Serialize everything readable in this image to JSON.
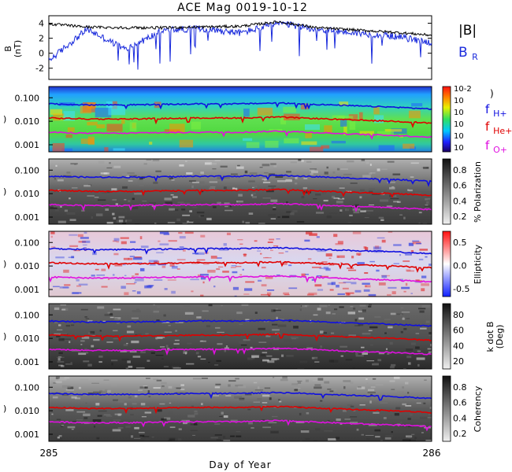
{
  "title": "ACE Mag 0019-10-12",
  "xlabel": "Day of Year",
  "x_ticks": [
    "285",
    "286"
  ],
  "colors": {
    "btot": "#000000",
    "br": "#1a2bdc",
    "fH": "#1010e0",
    "fHe": "#e00000",
    "fO": "#e010e0"
  },
  "mag_panel": {
    "ylabel": "B",
    "yunit": "(nT)",
    "yticks": [
      "4",
      "2",
      "0",
      "-2"
    ],
    "legend_btot": "|B|",
    "legend_br_main": "B",
    "legend_br_sub": "R"
  },
  "freq_ticks": [
    "0.100",
    "0.010",
    "0.001"
  ],
  "species_legend": {
    "h_main": "f",
    "h_sub": "H+",
    "he_main": "f",
    "he_sub": "He+",
    "o_main": "f",
    "o_sub": "O+"
  },
  "power_colorbar": {
    "ticks": [
      "10-2",
      "10",
      "10",
      "10",
      "10",
      "10"
    ],
    "paren": ")"
  },
  "pol_colorbar": {
    "label": "% Polarization",
    "ticks": [
      "0.8",
      "0.6",
      "0.4",
      "0.2"
    ]
  },
  "ell_colorbar": {
    "label": "Ellipticity",
    "ticks": [
      "0.5",
      "0.0",
      "-0.5"
    ]
  },
  "kdotb_colorbar": {
    "label1": "k dot B",
    "label2": "(Deg)",
    "ticks": [
      "80",
      "60",
      "40",
      "20"
    ]
  },
  "coh_colorbar": {
    "label": "Coherency",
    "ticks": [
      "0.8",
      "0.6",
      "0.4",
      "0.2"
    ]
  },
  "chart_data": {
    "type": "line",
    "x": [
      285.0,
      285.1,
      285.2,
      285.3,
      285.4,
      285.5,
      285.6,
      285.7,
      285.8,
      285.9,
      286.0
    ],
    "xlim": [
      285,
      286
    ],
    "magnetic_field": {
      "ylim": [
        -3.5,
        5
      ],
      "series": [
        {
          "name": "|B|",
          "values": [
            3.9,
            3.5,
            3.4,
            3.4,
            3.5,
            3.6,
            4.2,
            3.4,
            3.1,
            2.8,
            2.4
          ]
        },
        {
          "name": "B_R",
          "values": [
            -1.0,
            3.2,
            0.5,
            3.1,
            3.3,
            2.7,
            4.0,
            3.2,
            2.7,
            2.3,
            1.4
          ]
        }
      ]
    },
    "gyrofrequency_hz": {
      "yscale": "log",
      "ylim": [
        0.0005,
        0.3
      ],
      "series": [
        {
          "name": "f_H+",
          "values": [
            0.055,
            0.05,
            0.05,
            0.052,
            0.055,
            0.055,
            0.06,
            0.052,
            0.045,
            0.04,
            0.033
          ]
        },
        {
          "name": "f_He+",
          "values": [
            0.0138,
            0.0125,
            0.0125,
            0.013,
            0.0138,
            0.0138,
            0.015,
            0.013,
            0.0112,
            0.01,
            0.0083
          ]
        },
        {
          "name": "f_O+",
          "values": [
            0.0034,
            0.0031,
            0.0031,
            0.0033,
            0.0034,
            0.0034,
            0.0038,
            0.0033,
            0.0028,
            0.0025,
            0.0021
          ]
        }
      ]
    }
  }
}
